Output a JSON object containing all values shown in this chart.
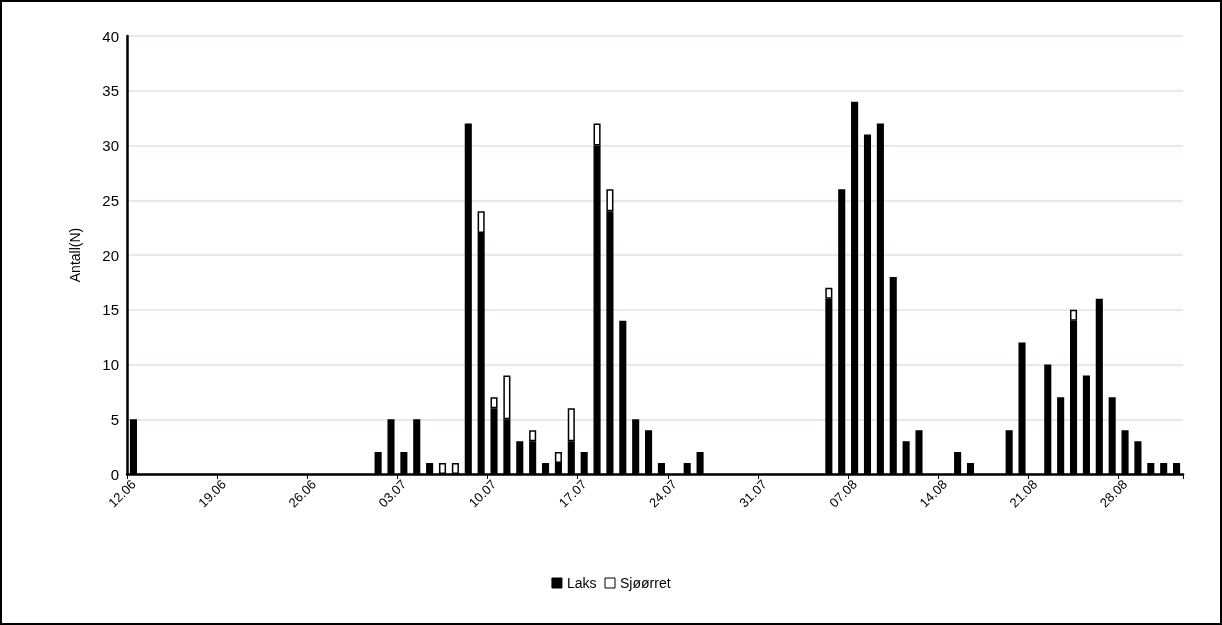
{
  "chart_data": {
    "type": "bar",
    "stacked": true,
    "ylabel": "Antall(N)",
    "legend": "bottom",
    "grid": "y",
    "ylim": [
      0,
      40
    ],
    "yticks": [
      0,
      5,
      10,
      15,
      20,
      25,
      30,
      35,
      40
    ],
    "categories": [
      "12.06",
      null,
      null,
      null,
      null,
      null,
      null,
      "19.06",
      null,
      null,
      null,
      null,
      null,
      null,
      "26.06",
      null,
      null,
      null,
      null,
      null,
      null,
      "03.07",
      null,
      null,
      null,
      null,
      null,
      null,
      "10.07",
      null,
      null,
      null,
      null,
      null,
      null,
      "17.07",
      null,
      null,
      null,
      null,
      null,
      null,
      "24.07",
      null,
      null,
      null,
      null,
      null,
      null,
      "31.07",
      null,
      null,
      null,
      null,
      null,
      null,
      "07.08",
      null,
      null,
      null,
      null,
      null,
      null,
      "14.08",
      null,
      null,
      null,
      null,
      null,
      null,
      "21.08",
      null,
      null,
      null,
      null,
      null,
      null,
      "28.08",
      null,
      null,
      null,
      null
    ],
    "series": [
      {
        "name": "Laks",
        "color": "#000000",
        "values": [
          5,
          0,
          0,
          0,
          0,
          0,
          0,
          0,
          0,
          0,
          0,
          0,
          0,
          0,
          0,
          0,
          0,
          0,
          0,
          2,
          5,
          2,
          5,
          1,
          0,
          0,
          32,
          22,
          6,
          5,
          3,
          3,
          1,
          1,
          3,
          2,
          30,
          24,
          14,
          5,
          4,
          1,
          0,
          1,
          2,
          0,
          0,
          0,
          0,
          0,
          0,
          0,
          0,
          0,
          16,
          26,
          34,
          31,
          32,
          18,
          3,
          4,
          0,
          0,
          2,
          1,
          0,
          0,
          4,
          12,
          0,
          10,
          7,
          14,
          9,
          16,
          7,
          4,
          3,
          1,
          1,
          1
        ]
      },
      {
        "name": "Sjøørret",
        "color": "#ffffff",
        "values": [
          0,
          0,
          0,
          0,
          0,
          0,
          0,
          0,
          0,
          0,
          0,
          0,
          0,
          0,
          0,
          0,
          0,
          0,
          0,
          0,
          0,
          0,
          0,
          0,
          1,
          1,
          0,
          2,
          1,
          4,
          0,
          1,
          0,
          1,
          3,
          0,
          2,
          2,
          0,
          0,
          0,
          0,
          0,
          0,
          0,
          0,
          0,
          0,
          0,
          0,
          0,
          0,
          0,
          0,
          1,
          0,
          0,
          0,
          0,
          0,
          0,
          0,
          0,
          0,
          0,
          0,
          0,
          0,
          0,
          0,
          0,
          0,
          0,
          1,
          0,
          0,
          0,
          0,
          0,
          0,
          0,
          0
        ]
      }
    ]
  }
}
